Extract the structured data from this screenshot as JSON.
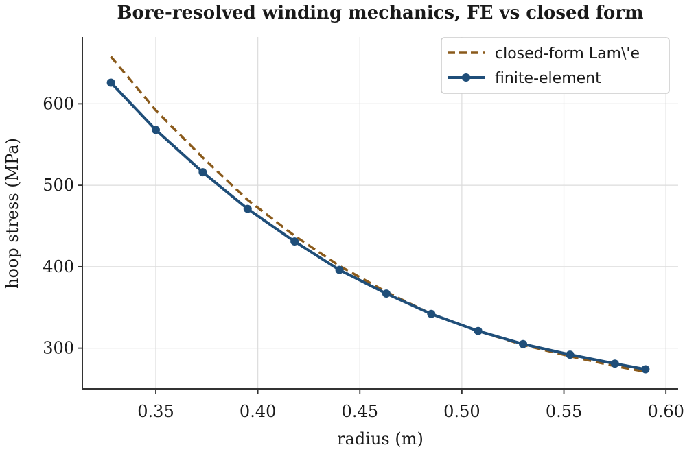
{
  "chart_data": {
    "type": "line",
    "title": "Bore-resolved winding mechanics, FE vs closed form",
    "xlabel": "radius  (m)",
    "ylabel": "hoop stress  (MPa)",
    "xlim": [
      0.314,
      0.606
    ],
    "ylim": [
      250,
      682
    ],
    "xticks": [
      0.35,
      0.4,
      0.45,
      0.5,
      0.55,
      0.6
    ],
    "xtick_labels": [
      "0.35",
      "0.40",
      "0.45",
      "0.50",
      "0.55",
      "0.60"
    ],
    "yticks": [
      300,
      400,
      500,
      600
    ],
    "ytick_labels": [
      "300",
      "400",
      "500",
      "600"
    ],
    "grid": true,
    "legend_position": "top-right",
    "series": [
      {
        "name": "closed-form Lam\\'e",
        "style": "dashed",
        "color": "#8a5a1b",
        "x": [
          0.328,
          0.35,
          0.373,
          0.395,
          0.418,
          0.44,
          0.463,
          0.485,
          0.508,
          0.53,
          0.553,
          0.575,
          0.59
        ],
        "values": [
          658,
          592,
          534,
          482,
          438,
          401,
          369,
          342,
          321,
          304,
          290,
          278,
          271
        ]
      },
      {
        "name": "finite-element",
        "style": "solid-markers",
        "color": "#1f4e79",
        "x": [
          0.328,
          0.35,
          0.373,
          0.395,
          0.418,
          0.44,
          0.463,
          0.485,
          0.508,
          0.53,
          0.553,
          0.575,
          0.59
        ],
        "values": [
          626,
          568,
          516,
          471,
          431,
          396,
          367,
          342,
          321,
          305,
          292,
          281,
          274
        ]
      }
    ]
  }
}
